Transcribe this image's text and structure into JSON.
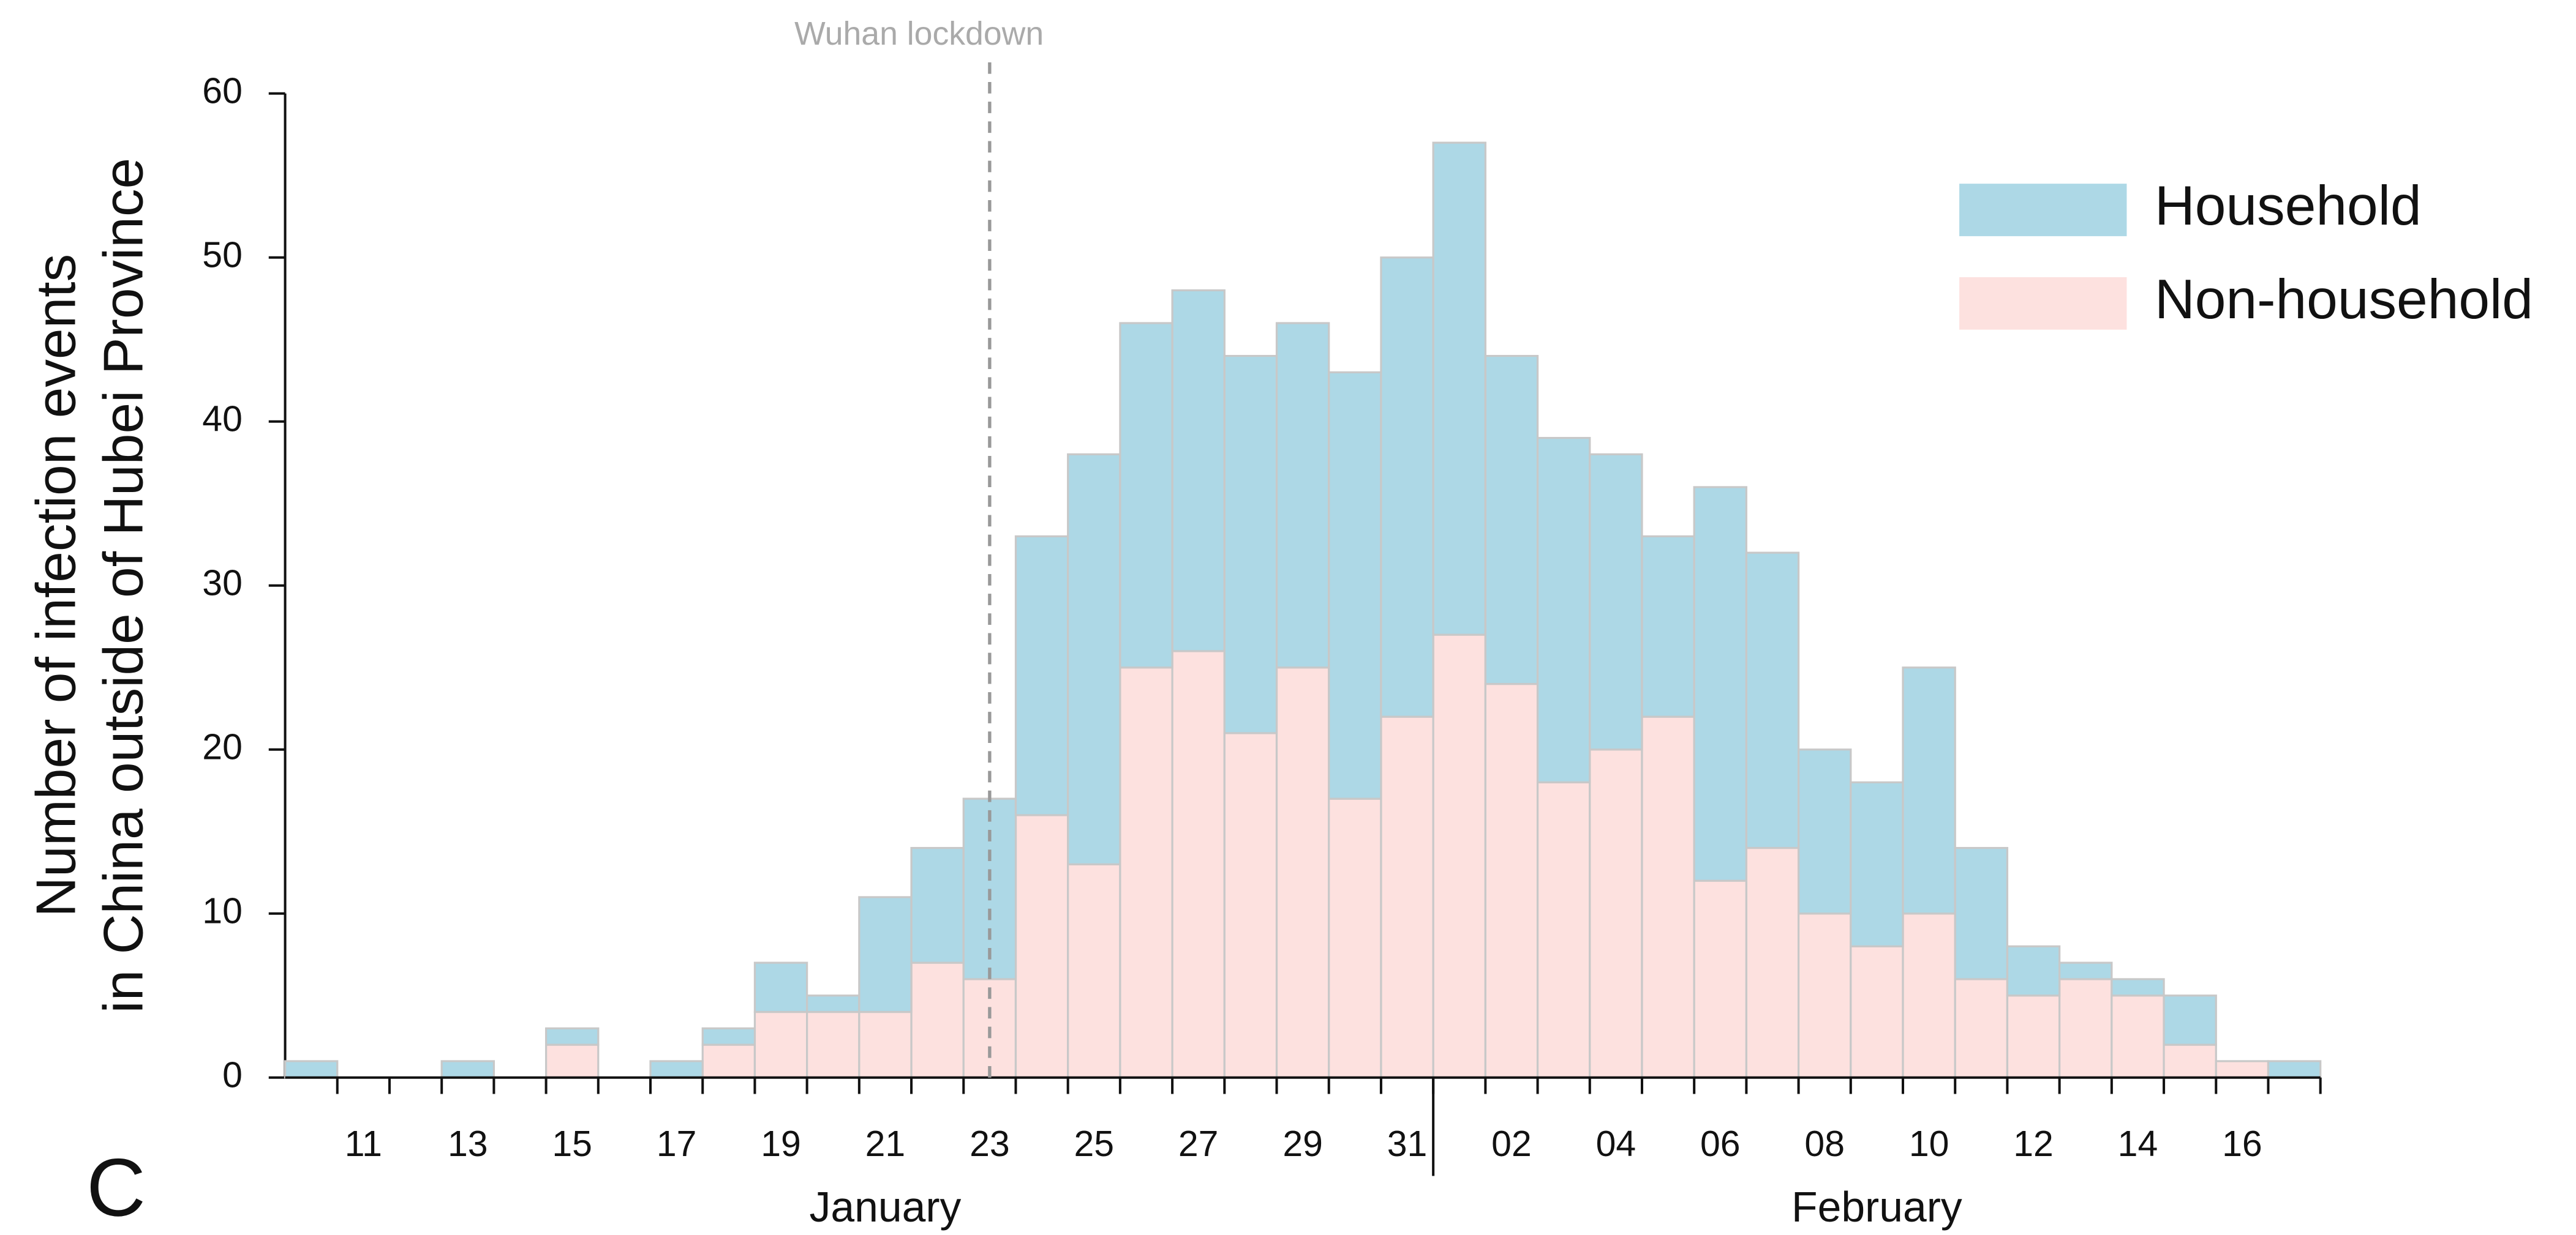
{
  "chart_data": {
    "type": "stacked-bar",
    "panel_label": "C",
    "ylabel": [
      "Number of infection events",
      "in China outside of Hubei Province"
    ],
    "categories": [
      null,
      "11",
      null,
      "13",
      null,
      "15",
      null,
      "17",
      null,
      "19",
      null,
      "21",
      null,
      "23",
      null,
      "25",
      null,
      "27",
      null,
      "29",
      null,
      "31",
      null,
      "02",
      null,
      "04",
      null,
      "06",
      null,
      "08",
      null,
      "10",
      null,
      "12",
      null,
      "14",
      null,
      "16",
      null
    ],
    "x_groups": [
      "January",
      "February"
    ],
    "series": [
      {
        "name": "Household",
        "color": "#add8e6",
        "values": [
          1,
          0,
          0,
          1,
          0,
          1,
          0,
          1,
          1,
          3,
          1,
          7,
          7,
          11,
          17,
          25,
          21,
          22,
          23,
          21,
          26,
          28,
          30,
          20,
          21,
          18,
          11,
          24,
          18,
          10,
          10,
          15,
          8,
          3,
          1,
          1,
          3,
          0,
          1
        ]
      },
      {
        "name": "Non-household",
        "color": "#fde1df",
        "values": [
          0,
          0,
          0,
          0,
          0,
          2,
          0,
          0,
          2,
          4,
          4,
          4,
          7,
          6,
          16,
          13,
          25,
          26,
          21,
          25,
          17,
          22,
          27,
          24,
          18,
          20,
          22,
          12,
          14,
          10,
          8,
          10,
          6,
          5,
          6,
          5,
          2,
          1,
          0
        ]
      }
    ],
    "ylim": [
      0,
      60
    ],
    "yticks": [
      0,
      10,
      20,
      30,
      40,
      50,
      60
    ],
    "legend": "upper right",
    "annotation": {
      "text": "Wuhan lockdown",
      "category": "23"
    }
  }
}
